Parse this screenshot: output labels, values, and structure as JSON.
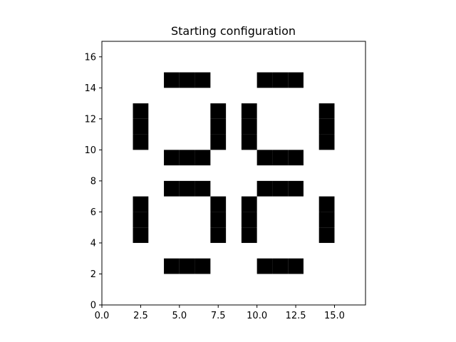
{
  "chart_data": {
    "type": "heatmap",
    "title": "Starting configuration",
    "xlabel": "",
    "ylabel": "",
    "xlim": [
      0,
      17
    ],
    "ylim": [
      0,
      17
    ],
    "xticks": [
      0.0,
      2.5,
      5.0,
      7.5,
      10.0,
      12.5,
      15.0
    ],
    "xtick_labels": [
      "0.0",
      "2.5",
      "5.0",
      "7.5",
      "10.0",
      "12.5",
      "15.0"
    ],
    "yticks": [
      0,
      2,
      4,
      6,
      8,
      10,
      12,
      14,
      16
    ],
    "ytick_labels": [
      "0",
      "2",
      "4",
      "6",
      "8",
      "10",
      "12",
      "14",
      "16"
    ],
    "grid": false,
    "cell_colors": {
      "alive": "#000000",
      "dead": "#ffffff"
    },
    "alive_cells": [
      [
        4,
        2
      ],
      [
        5,
        2
      ],
      [
        6,
        2
      ],
      [
        10,
        2
      ],
      [
        11,
        2
      ],
      [
        12,
        2
      ],
      [
        2,
        4
      ],
      [
        7,
        4
      ],
      [
        9,
        4
      ],
      [
        14,
        4
      ],
      [
        2,
        5
      ],
      [
        7,
        5
      ],
      [
        9,
        5
      ],
      [
        14,
        5
      ],
      [
        2,
        6
      ],
      [
        7,
        6
      ],
      [
        9,
        6
      ],
      [
        14,
        6
      ],
      [
        4,
        7
      ],
      [
        5,
        7
      ],
      [
        6,
        7
      ],
      [
        10,
        7
      ],
      [
        11,
        7
      ],
      [
        12,
        7
      ],
      [
        4,
        9
      ],
      [
        5,
        9
      ],
      [
        6,
        9
      ],
      [
        10,
        9
      ],
      [
        11,
        9
      ],
      [
        12,
        9
      ],
      [
        2,
        10
      ],
      [
        7,
        10
      ],
      [
        9,
        10
      ],
      [
        14,
        10
      ],
      [
        2,
        11
      ],
      [
        7,
        11
      ],
      [
        9,
        11
      ],
      [
        14,
        11
      ],
      [
        2,
        12
      ],
      [
        7,
        12
      ],
      [
        9,
        12
      ],
      [
        14,
        12
      ],
      [
        4,
        14
      ],
      [
        5,
        14
      ],
      [
        6,
        14
      ],
      [
        10,
        14
      ],
      [
        11,
        14
      ],
      [
        12,
        14
      ]
    ]
  }
}
